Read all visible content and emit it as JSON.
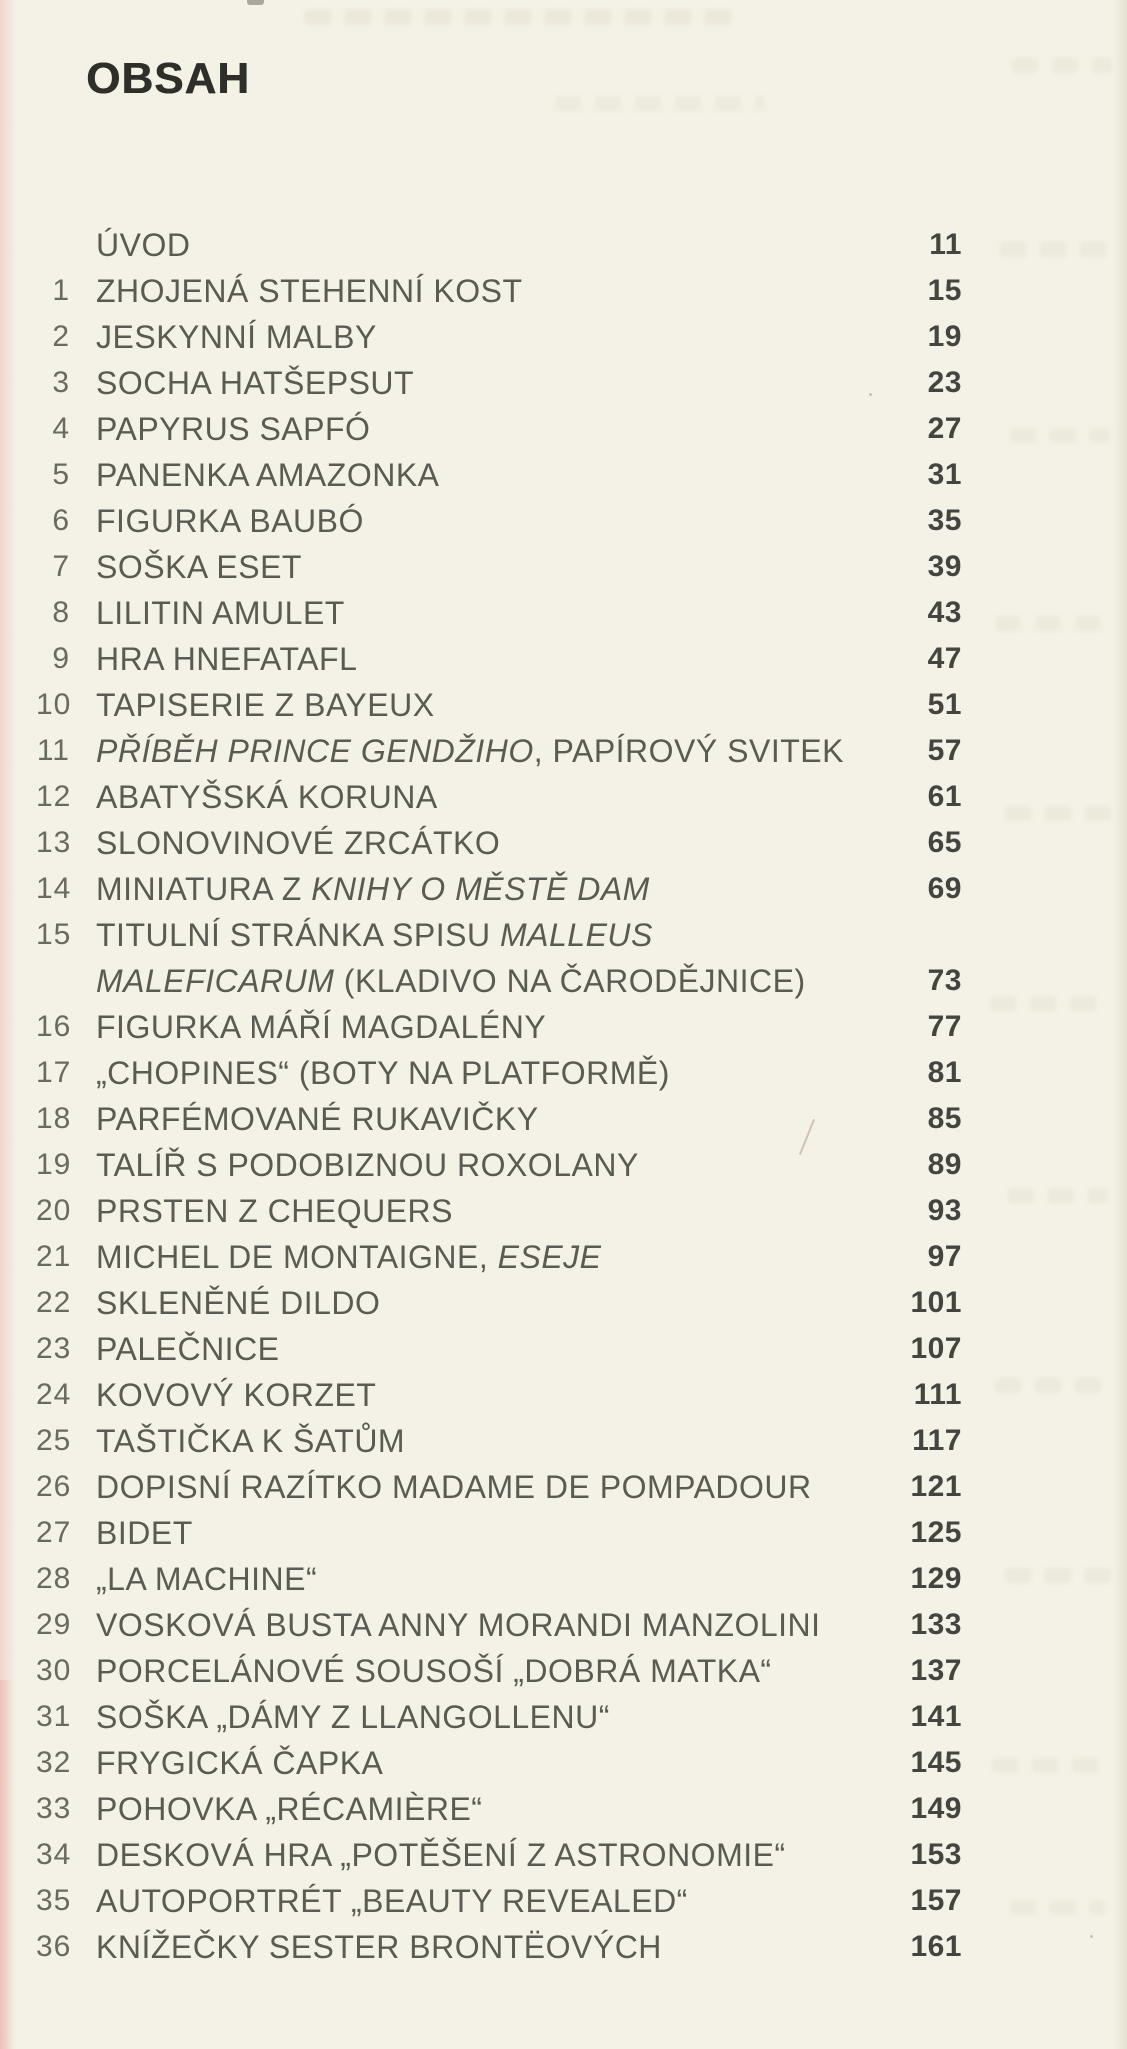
{
  "page": {
    "title": "OBSAH",
    "background_color": "#f4f1e6",
    "heading_color": "#2e2f29",
    "entry_text_color": "#5a5b52",
    "entry_number_color": "#696a60",
    "page_number_color": "#44453e"
  },
  "toc": {
    "entries": [
      {
        "num": "",
        "page": "11",
        "lines": [
          [
            {
              "t": "ÚVOD",
              "i": false
            }
          ]
        ]
      },
      {
        "num": "1",
        "page": "15",
        "lines": [
          [
            {
              "t": "ZHOJENÁ STEHENNÍ KOST",
              "i": false
            }
          ]
        ]
      },
      {
        "num": "2",
        "page": "19",
        "lines": [
          [
            {
              "t": "JESKYNNÍ MALBY",
              "i": false
            }
          ]
        ]
      },
      {
        "num": "3",
        "page": "23",
        "lines": [
          [
            {
              "t": "SOCHA HATŠEPSUT",
              "i": false
            }
          ]
        ]
      },
      {
        "num": "4",
        "page": "27",
        "lines": [
          [
            {
              "t": "PAPYRUS SAPFÓ",
              "i": false
            }
          ]
        ]
      },
      {
        "num": "5",
        "page": "31",
        "lines": [
          [
            {
              "t": "PANENKA AMAZONKA",
              "i": false
            }
          ]
        ]
      },
      {
        "num": "6",
        "page": "35",
        "lines": [
          [
            {
              "t": "FIGURKA BAUBÓ",
              "i": false
            }
          ]
        ]
      },
      {
        "num": "7",
        "page": "39",
        "lines": [
          [
            {
              "t": "SOŠKA ESET",
              "i": false
            }
          ]
        ]
      },
      {
        "num": "8",
        "page": "43",
        "lines": [
          [
            {
              "t": "LILITIN AMULET",
              "i": false
            }
          ]
        ]
      },
      {
        "num": "9",
        "page": "47",
        "lines": [
          [
            {
              "t": "HRA HNEFATAFL",
              "i": false
            }
          ]
        ]
      },
      {
        "num": "10",
        "page": "51",
        "lines": [
          [
            {
              "t": "TAPISERIE Z BAYEUX",
              "i": false
            }
          ]
        ]
      },
      {
        "num": "11",
        "page": "57",
        "lines": [
          [
            {
              "t": "PŘÍBĚH PRINCE GENDŽIHO",
              "i": true
            },
            {
              "t": ", PAPÍROVÝ SVITEK",
              "i": false
            }
          ]
        ]
      },
      {
        "num": "12",
        "page": "61",
        "lines": [
          [
            {
              "t": "ABATYŠSKÁ KORUNA",
              "i": false
            }
          ]
        ]
      },
      {
        "num": "13",
        "page": "65",
        "lines": [
          [
            {
              "t": "SLONOVINOVÉ ZRCÁTKO",
              "i": false
            }
          ]
        ]
      },
      {
        "num": "14",
        "page": "69",
        "lines": [
          [
            {
              "t": "MINIATURA Z ",
              "i": false
            },
            {
              "t": "KNIHY O MĚSTĚ DAM",
              "i": true
            }
          ]
        ]
      },
      {
        "num": "15",
        "page": "73",
        "lines": [
          [
            {
              "t": "TITULNÍ STRÁNKA SPISU ",
              "i": false
            },
            {
              "t": "MALLEUS",
              "i": true
            }
          ],
          [
            {
              "t": "MALEFICARUM",
              "i": true
            },
            {
              "t": " (KLADIVO NA ČARODĚJNICE)",
              "i": false
            }
          ]
        ]
      },
      {
        "num": "16",
        "page": "77",
        "lines": [
          [
            {
              "t": "FIGURKA MÁŘÍ MAGDALÉNY",
              "i": false
            }
          ]
        ]
      },
      {
        "num": "17",
        "page": "81",
        "lines": [
          [
            {
              "t": "„CHOPINES“ (BOTY NA PLATFORMĚ)",
              "i": false
            }
          ]
        ]
      },
      {
        "num": "18",
        "page": "85",
        "lines": [
          [
            {
              "t": "PARFÉMOVANÉ RUKAVIČKY",
              "i": false
            }
          ]
        ]
      },
      {
        "num": "19",
        "page": "89",
        "lines": [
          [
            {
              "t": "TALÍŘ S PODOBIZNOU ROXOLANY",
              "i": false
            }
          ]
        ]
      },
      {
        "num": "20",
        "page": "93",
        "lines": [
          [
            {
              "t": "PRSTEN Z CHEQUERS",
              "i": false
            }
          ]
        ]
      },
      {
        "num": "21",
        "page": "97",
        "lines": [
          [
            {
              "t": "MICHEL DE MONTAIGNE, ",
              "i": false
            },
            {
              "t": "ESEJE",
              "i": true
            }
          ]
        ]
      },
      {
        "num": "22",
        "page": "101",
        "lines": [
          [
            {
              "t": "SKLENĚNÉ DILDO",
              "i": false
            }
          ]
        ]
      },
      {
        "num": "23",
        "page": "107",
        "lines": [
          [
            {
              "t": "PALEČNICE",
              "i": false
            }
          ]
        ]
      },
      {
        "num": "24",
        "page": "111",
        "lines": [
          [
            {
              "t": "KOVOVÝ KORZET",
              "i": false
            }
          ]
        ]
      },
      {
        "num": "25",
        "page": "117",
        "lines": [
          [
            {
              "t": "TAŠTIČKA K ŠATŮM",
              "i": false
            }
          ]
        ]
      },
      {
        "num": "26",
        "page": "121",
        "lines": [
          [
            {
              "t": "DOPISNÍ RAZÍTKO MADAME DE POMPADOUR",
              "i": false
            }
          ]
        ]
      },
      {
        "num": "27",
        "page": "125",
        "lines": [
          [
            {
              "t": "BIDET",
              "i": false
            }
          ]
        ]
      },
      {
        "num": "28",
        "page": "129",
        "lines": [
          [
            {
              "t": "„LA MACHINE“",
              "i": false
            }
          ]
        ]
      },
      {
        "num": "29",
        "page": "133",
        "lines": [
          [
            {
              "t": "VOSKOVÁ BUSTA ANNY MORANDI MANZOLINI",
              "i": false
            }
          ]
        ]
      },
      {
        "num": "30",
        "page": "137",
        "lines": [
          [
            {
              "t": "PORCELÁNOVÉ SOUSOŠÍ „DOBRÁ MATKA“",
              "i": false
            }
          ]
        ]
      },
      {
        "num": "31",
        "page": "141",
        "lines": [
          [
            {
              "t": "SOŠKA „DÁMY Z LLANGOLLENU“",
              "i": false
            }
          ]
        ]
      },
      {
        "num": "32",
        "page": "145",
        "lines": [
          [
            {
              "t": "FRYGICKÁ ČAPKA",
              "i": false
            }
          ]
        ]
      },
      {
        "num": "33",
        "page": "149",
        "lines": [
          [
            {
              "t": "POHOVKA „RÉCAMIÈRE“",
              "i": false
            }
          ]
        ]
      },
      {
        "num": "34",
        "page": "153",
        "lines": [
          [
            {
              "t": "DESKOVÁ HRA „POTĚŠENÍ Z ASTRONOMIE“",
              "i": false
            }
          ]
        ]
      },
      {
        "num": "35",
        "page": "157",
        "lines": [
          [
            {
              "t": "AUTOPORTRÉT „BEAUTY REVEALED“",
              "i": false
            }
          ]
        ]
      },
      {
        "num": "36",
        "page": "161",
        "lines": [
          [
            {
              "t": "KNÍŽEČKY SESTER BRONTËOVÝCH",
              "i": false
            }
          ]
        ]
      }
    ]
  }
}
